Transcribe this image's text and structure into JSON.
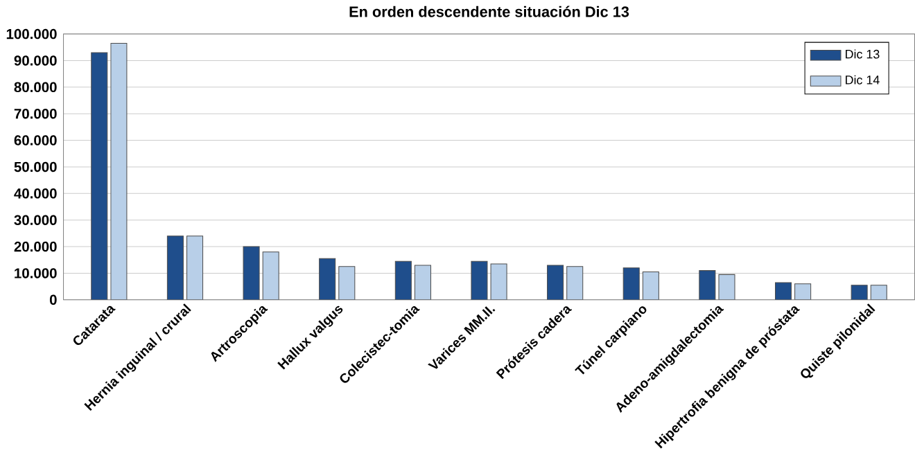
{
  "chart_data": {
    "type": "bar",
    "title": "En orden descendente situación Dic 13",
    "categories": [
      "Catarata",
      "Hernia inguinal / crural",
      "Artroscopia",
      "Hallux valgus",
      "Colecistec-tomia",
      "Varices MM.II.",
      "Prótesis cadera",
      "Túnel carpiano",
      "Adeno-amigdalectomia",
      "Hipertrofia benigna de próstata",
      "Quiste pilonidal"
    ],
    "series": [
      {
        "name": "Dic 13",
        "color": "#1f4e8c",
        "values": [
          93000,
          24000,
          20000,
          15500,
          14500,
          14500,
          13000,
          12000,
          11000,
          6500,
          5500
        ]
      },
      {
        "name": "Dic 14",
        "color": "#b8cfe8",
        "values": [
          96500,
          24000,
          18000,
          12500,
          13000,
          13500,
          12500,
          10500,
          9500,
          6000,
          5500
        ]
      }
    ],
    "ylim": [
      0,
      100000
    ],
    "yticks": [
      0,
      {
        "value": 10000,
        "label": "10.000"
      },
      {
        "value": 20000,
        "label": "20.000"
      },
      {
        "value": 30000,
        "label": "30.000"
      },
      {
        "value": 40000,
        "label": "40.000"
      },
      {
        "value": 50000,
        "label": "50.000"
      },
      {
        "value": 60000,
        "label": "60.000"
      },
      {
        "value": 70000,
        "label": "70.000"
      },
      {
        "value": 80000,
        "label": "80.000"
      },
      {
        "value": 90000,
        "label": "90.000"
      },
      {
        "value": 100000,
        "label": "100.000"
      }
    ],
    "grid": "y",
    "legend": "top right"
  }
}
